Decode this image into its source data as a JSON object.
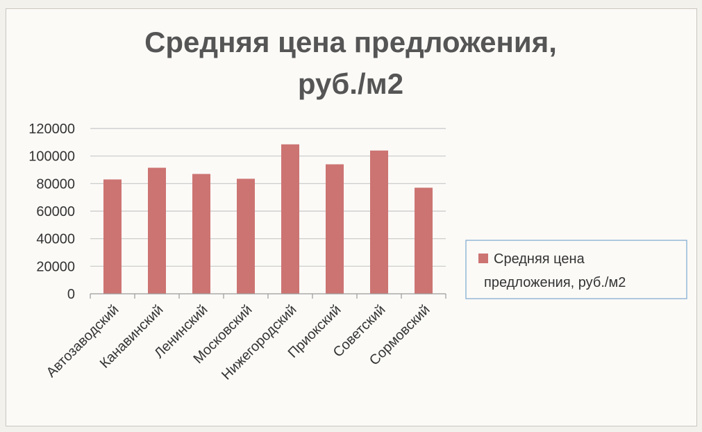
{
  "chart_data": {
    "type": "bar",
    "title": "Средняя цена предложения, руб./м2",
    "title_lines": [
      "Средняя цена предложения,",
      "руб./м2"
    ],
    "categories": [
      "Автозаводский",
      "Канавинский",
      "Ленинский",
      "Московский",
      "Нижегородский",
      "Приокский",
      "Советский",
      "Сормовский"
    ],
    "series": [
      {
        "name": "Средняя цена предложения, руб./м2",
        "legend_lines": [
          "Средняя цена",
          "предложения, руб./м2"
        ],
        "values": [
          83000,
          91500,
          87000,
          83500,
          108500,
          94000,
          104000,
          77000
        ]
      }
    ],
    "ylim": [
      0,
      120000
    ],
    "yticks": [
      0,
      20000,
      40000,
      60000,
      80000,
      100000,
      120000
    ],
    "xlabel": "",
    "ylabel": "",
    "grid": true,
    "legend_position": "right",
    "colors": {
      "bar": "#cc7472",
      "grid": "#c8c8c8",
      "title": "#555555",
      "text": "#333333",
      "legend_border": "#7ba7cf"
    }
  }
}
